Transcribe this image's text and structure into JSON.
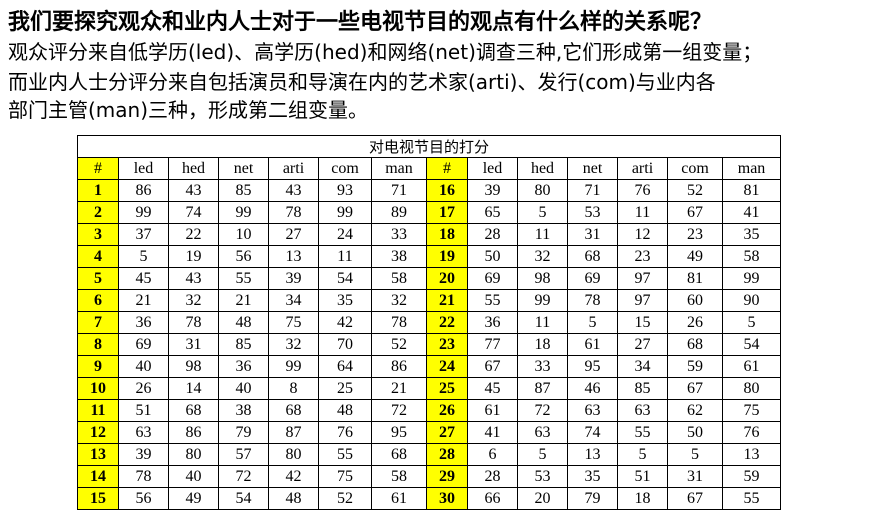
{
  "heading": "我们要探究观众和业内人士对于一些电视节目的观点有什么样的关系呢？",
  "paragraph": [
    "观众评分来自低学历(led)、高学历(hed)和网络(net)调查三种,它们形成第一组变量；",
    "而业内人士分评分来自包括演员和导演在内的艺术家(arti)、发行(com)与业内各",
    "部门主管(man)三种，形成第二组变量。"
  ],
  "table": {
    "caption": "对电视节目的打分",
    "headers": [
      "#",
      "led",
      "hed",
      "net",
      "arti",
      "com",
      "man",
      "#",
      "led",
      "hed",
      "net",
      "arti",
      "com",
      "man"
    ],
    "rows": [
      [
        "1",
        "86",
        "43",
        "85",
        "43",
        "93",
        "71",
        "16",
        "39",
        "80",
        "71",
        "76",
        "52",
        "81"
      ],
      [
        "2",
        "99",
        "74",
        "99",
        "78",
        "99",
        "89",
        "17",
        "65",
        "5",
        "53",
        "11",
        "67",
        "41"
      ],
      [
        "3",
        "37",
        "22",
        "10",
        "27",
        "24",
        "33",
        "18",
        "28",
        "11",
        "31",
        "12",
        "23",
        "35"
      ],
      [
        "4",
        "5",
        "19",
        "56",
        "13",
        "11",
        "38",
        "19",
        "50",
        "32",
        "68",
        "23",
        "49",
        "58"
      ],
      [
        "5",
        "45",
        "43",
        "55",
        "39",
        "54",
        "58",
        "20",
        "69",
        "98",
        "69",
        "97",
        "81",
        "99"
      ],
      [
        "6",
        "21",
        "32",
        "21",
        "34",
        "35",
        "32",
        "21",
        "55",
        "99",
        "78",
        "97",
        "60",
        "90"
      ],
      [
        "7",
        "36",
        "78",
        "48",
        "75",
        "42",
        "78",
        "22",
        "36",
        "11",
        "5",
        "15",
        "26",
        "5"
      ],
      [
        "8",
        "69",
        "31",
        "85",
        "32",
        "70",
        "52",
        "23",
        "77",
        "18",
        "61",
        "27",
        "68",
        "54"
      ],
      [
        "9",
        "40",
        "98",
        "36",
        "99",
        "64",
        "86",
        "24",
        "67",
        "33",
        "95",
        "34",
        "59",
        "61"
      ],
      [
        "10",
        "26",
        "14",
        "40",
        "8",
        "25",
        "21",
        "25",
        "45",
        "87",
        "46",
        "85",
        "67",
        "80"
      ],
      [
        "11",
        "51",
        "68",
        "38",
        "68",
        "48",
        "72",
        "26",
        "61",
        "72",
        "63",
        "63",
        "62",
        "75"
      ],
      [
        "12",
        "63",
        "86",
        "79",
        "87",
        "76",
        "95",
        "27",
        "41",
        "63",
        "74",
        "55",
        "50",
        "76"
      ],
      [
        "13",
        "39",
        "80",
        "57",
        "80",
        "55",
        "68",
        "28",
        "6",
        "5",
        "13",
        "5",
        "5",
        "13"
      ],
      [
        "14",
        "78",
        "40",
        "72",
        "42",
        "75",
        "58",
        "29",
        "28",
        "53",
        "35",
        "51",
        "31",
        "59"
      ],
      [
        "15",
        "56",
        "49",
        "54",
        "48",
        "52",
        "61",
        "30",
        "66",
        "20",
        "79",
        "18",
        "67",
        "55"
      ]
    ]
  },
  "colors": {
    "index_highlight": "#ffff00",
    "border": "#000000"
  }
}
